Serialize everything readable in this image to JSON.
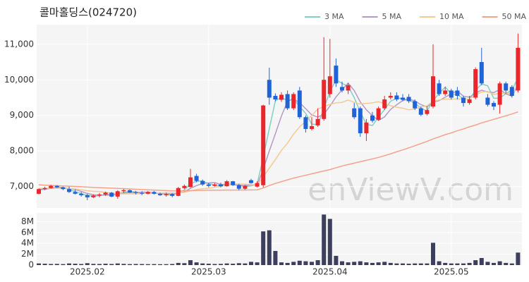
{
  "chart_data": [
    {
      "type": "candlestick",
      "title": "콜마홀딩스(024720)",
      "watermark": "enViewV.com",
      "categories": [
        null,
        null,
        null,
        null,
        null,
        null,
        null,
        null,
        "2025.02",
        null,
        null,
        null,
        null,
        null,
        null,
        null,
        null,
        null,
        null,
        null,
        null,
        null,
        null,
        null,
        null,
        null,
        null,
        null,
        "2025.03",
        null,
        null,
        null,
        null,
        null,
        null,
        null,
        null,
        null,
        null,
        null,
        null,
        null,
        null,
        null,
        null,
        null,
        null,
        null,
        "2025.04",
        null,
        null,
        null,
        null,
        null,
        null,
        null,
        null,
        null,
        null,
        null,
        null,
        null,
        null,
        null,
        null,
        null,
        null,
        null,
        "2025.05",
        null,
        null,
        null,
        null,
        null,
        null,
        null,
        null,
        null,
        null,
        null
      ],
      "open": [
        6800,
        6930,
        6960,
        7020,
        6980,
        6930,
        6850,
        6800,
        6760,
        6700,
        6750,
        6780,
        6830,
        6720,
        6870,
        6900,
        6840,
        6820,
        6800,
        6850,
        6800,
        6760,
        6790,
        6740,
        6960,
        6990,
        7300,
        7160,
        7060,
        7020,
        7060,
        7010,
        7150,
        7040,
        6940,
        7180,
        7000,
        7040,
        10000,
        9550,
        9440,
        9600,
        9200,
        9700,
        8950,
        8620,
        8720,
        8900,
        9600,
        10400,
        9800,
        9700,
        9200,
        9200,
        8500,
        9000,
        8880,
        9200,
        9500,
        9560,
        9500,
        9520,
        9400,
        9200,
        9040,
        9250,
        9900,
        9600,
        9700,
        9700,
        9500,
        9350,
        9500,
        10500,
        9500,
        9350,
        9300,
        9900,
        9800,
        9700
      ],
      "high": [
        6950,
        7000,
        7050,
        7040,
        7000,
        7000,
        6920,
        6850,
        6800,
        6780,
        6820,
        6860,
        6850,
        6900,
        6930,
        6920,
        6880,
        6870,
        6880,
        6880,
        6830,
        6830,
        6820,
        6990,
        7060,
        7500,
        7360,
        7200,
        7100,
        7100,
        7110,
        7180,
        7160,
        7080,
        7050,
        7220,
        7150,
        9300,
        10340,
        9620,
        9650,
        9700,
        9650,
        9800,
        9000,
        8950,
        9200,
        11200,
        11150,
        10600,
        9950,
        9900,
        9350,
        9250,
        8900,
        9100,
        9250,
        9550,
        9650,
        9650,
        9600,
        9600,
        9450,
        9250,
        9250,
        11000,
        10000,
        9800,
        9750,
        9800,
        9550,
        9550,
        10350,
        10900,
        9600,
        9400,
        9950,
        9950,
        9850,
        11300
      ],
      "low": [
        6780,
        6900,
        6940,
        6960,
        6900,
        6820,
        6780,
        6720,
        6620,
        6680,
        6700,
        6740,
        6700,
        6660,
        6820,
        6820,
        6780,
        6760,
        6780,
        6780,
        6740,
        6720,
        6700,
        6730,
        6930,
        6970,
        7120,
        7020,
        6980,
        7000,
        6980,
        7000,
        7020,
        6900,
        6910,
        7080,
        6980,
        6980,
        9300,
        9400,
        9380,
        9150,
        9150,
        8900,
        8520,
        8580,
        8680,
        8850,
        9500,
        9800,
        9650,
        9600,
        8900,
        8400,
        8280,
        8800,
        8850,
        9150,
        9450,
        9400,
        9400,
        9350,
        9150,
        8980,
        9000,
        9200,
        9550,
        9550,
        9450,
        9450,
        9250,
        9300,
        9450,
        9850,
        9250,
        9150,
        9050,
        9600,
        9500,
        9650
      ],
      "close": [
        6930,
        6960,
        7020,
        6980,
        6930,
        6850,
        6800,
        6760,
        6700,
        6750,
        6780,
        6830,
        6720,
        6870,
        6900,
        6840,
        6820,
        6800,
        6850,
        6800,
        6760,
        6790,
        6740,
        6960,
        7020,
        7260,
        7160,
        7060,
        7020,
        7060,
        7010,
        7150,
        7040,
        6940,
        7020,
        7100,
        7100,
        9280,
        9500,
        9450,
        9580,
        9200,
        9600,
        8950,
        8620,
        8700,
        8900,
        10000,
        10100,
        9900,
        9700,
        9850,
        8950,
        8500,
        8800,
        8850,
        9200,
        9450,
        9550,
        9450,
        9440,
        9400,
        9200,
        9020,
        9150,
        10100,
        9600,
        9700,
        9500,
        9550,
        9350,
        9450,
        10300,
        9900,
        9300,
        9250,
        9900,
        9700,
        9550,
        10900
      ],
      "up_color": "#e8262b",
      "down_color": "#1f63d8",
      "series": [
        {
          "name": "3 MA",
          "color": "#7fd1c7",
          "values": [
            6900,
            6930,
            6970,
            6987,
            6977,
            6920,
            6860,
            6803,
            6753,
            6737,
            6743,
            6787,
            6777,
            6807,
            6830,
            6870,
            6853,
            6820,
            6823,
            6817,
            6803,
            6783,
            6763,
            6830,
            6907,
            7080,
            7147,
            7160,
            7080,
            7047,
            7030,
            7073,
            7067,
            7043,
            7000,
            7020,
            7073,
            7827,
            8627,
            9410,
            9510,
            9410,
            9460,
            9250,
            9057,
            8757,
            8740,
            9200,
            9667,
            10000,
            9900,
            9817,
            9500,
            9100,
            8750,
            8717,
            8950,
            9167,
            9400,
            9483,
            9480,
            9430,
            9347,
            9207,
            9123,
            9423,
            9617,
            9800,
            9600,
            9583,
            9467,
            9450,
            9700,
            9883,
            9833,
            9483,
            9483,
            9617,
            9717,
            10050
          ]
        },
        {
          "name": "5 MA",
          "color": "#b39ac8",
          "values": [
            6920,
            6930,
            6950,
            6960,
            6964,
            6948,
            6916,
            6864,
            6808,
            6772,
            6758,
            6764,
            6756,
            6790,
            6820,
            6832,
            6830,
            6846,
            6842,
            6822,
            6806,
            6800,
            6788,
            6810,
            6854,
            6952,
            7028,
            7092,
            7104,
            7112,
            7062,
            7060,
            7056,
            7040,
            7032,
            7050,
            7040,
            7488,
            8000,
            8486,
            8982,
            9402,
            9466,
            9356,
            9190,
            9014,
            8954,
            9034,
            9264,
            9520,
            9720,
            9910,
            9700,
            9380,
            9160,
            8990,
            8860,
            8960,
            9170,
            9300,
            9418,
            9458,
            9408,
            9302,
            9242,
            9374,
            9414,
            9514,
            9610,
            9690,
            9540,
            9510,
            9630,
            9710,
            9660,
            9640,
            9730,
            9610,
            9540,
            9860
          ]
        },
        {
          "name": "10 MA",
          "color": "#f5c98f",
          "values": [
            6950,
            6950,
            6955,
            6955,
            6955,
            6945,
            6935,
            6910,
            6885,
            6868,
            6861,
            6840,
            6810,
            6799,
            6796,
            6795,
            6797,
            6805,
            6816,
            6821,
            6819,
            6823,
            6817,
            6828,
            6838,
            6879,
            6917,
            6940,
            6957,
            6983,
            7007,
            7044,
            7074,
            7072,
            7072,
            7056,
            7050,
            7272,
            7518,
            7759,
            8016,
            8221,
            8477,
            8678,
            8838,
            8998,
            9178,
            9250,
            9310,
            9355,
            9367,
            9432,
            9367,
            9322,
            9340,
            9355,
            9385,
            9330,
            9275,
            9230,
            9204,
            9159,
            9184,
            9236,
            9271,
            9396,
            9436,
            9461,
            9456,
            9466,
            9457,
            9462,
            9572,
            9660,
            9675,
            9590,
            9620,
            9620,
            9625,
            9760
          ]
        },
        {
          "name": "50 MA",
          "color": "#f4a28c",
          "values": [
            7050,
            7042,
            7034,
            7027,
            7019,
            7011,
            7003,
            6996,
            6988,
            6980,
            6973,
            6965,
            6957,
            6949,
            6942,
            6934,
            6926,
            6918,
            6911,
            6903,
            6895,
            6888,
            6880,
            6880,
            6885,
            6890,
            6893,
            6895,
            6897,
            6900,
            6900,
            6902,
            6903,
            6905,
            6905,
            6907,
            6910,
            6960,
            7030,
            7090,
            7140,
            7190,
            7240,
            7280,
            7320,
            7360,
            7400,
            7440,
            7480,
            7530,
            7580,
            7620,
            7660,
            7700,
            7740,
            7780,
            7820,
            7870,
            7920,
            7980,
            8030,
            8090,
            8150,
            8210,
            8270,
            8340,
            8400,
            8460,
            8510,
            8570,
            8620,
            8680,
            8730,
            8790,
            8840,
            8890,
            8940,
            8990,
            9040,
            9100
          ]
        }
      ],
      "ylim": [
        6400,
        11550
      ],
      "yticks": [
        {
          "value": 7000,
          "label": "7,000"
        },
        {
          "value": 8000,
          "label": "8,000"
        },
        {
          "value": 9000,
          "label": "9,000"
        },
        {
          "value": 10000,
          "label": "10,000"
        },
        {
          "value": 11000,
          "label": "11,000"
        }
      ],
      "grid": true
    },
    {
      "type": "bar",
      "color": "#3c3f5e",
      "values": [
        300000,
        250000,
        200000,
        220000,
        180000,
        300000,
        250000,
        200000,
        350000,
        220000,
        200000,
        250000,
        200000,
        300000,
        220000,
        180000,
        200000,
        190000,
        170000,
        180000,
        160000,
        170000,
        200000,
        400000,
        350000,
        900000,
        500000,
        300000,
        250000,
        200000,
        220000,
        300000,
        250000,
        350000,
        300000,
        600000,
        500000,
        6200000,
        6400000,
        2600000,
        500000,
        400000,
        600000,
        800000,
        700000,
        600000,
        900000,
        9300000,
        8500000,
        1700000,
        700000,
        500000,
        600000,
        700000,
        500000,
        400000,
        500000,
        600000,
        400000,
        300000,
        300000,
        250000,
        300000,
        300000,
        300000,
        4100000,
        700000,
        400000,
        300000,
        300000,
        300000,
        400000,
        900000,
        1300000,
        600000,
        400000,
        700000,
        400000,
        300000,
        2300000
      ],
      "ylim": [
        0,
        9600000
      ],
      "yticks": [
        0,
        {
          "value": 2000000,
          "label": "2M"
        },
        {
          "value": 4000000,
          "label": "4M"
        },
        {
          "value": 6000000,
          "label": "6M"
        },
        {
          "value": 8000000,
          "label": "8M"
        }
      ],
      "grid": true
    }
  ]
}
